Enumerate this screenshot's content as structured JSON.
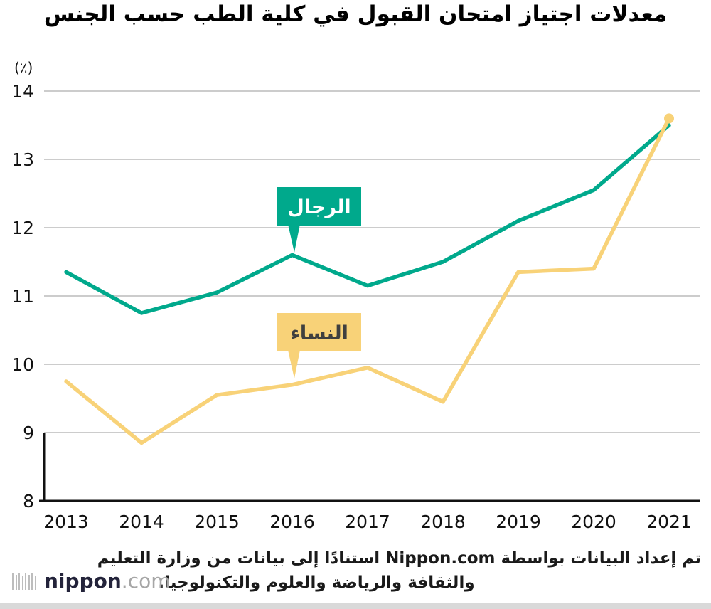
{
  "title": "معدلات اجتياز امتحان القبول في كلية الطب حسب الجنس",
  "chart_data": {
    "type": "line",
    "x": [
      "2013",
      "2014",
      "2015",
      "2016",
      "2017",
      "2018",
      "2019",
      "2020",
      "2021"
    ],
    "series": [
      {
        "name": "الرجال",
        "color": "#00a98c",
        "label_text_color": "#ffffff",
        "end_dot": false,
        "values": [
          11.35,
          10.75,
          11.05,
          11.6,
          11.15,
          11.5,
          12.1,
          12.55,
          13.5
        ]
      },
      {
        "name": "النساء",
        "color": "#f8d278",
        "label_text_color": "#3f3f3f",
        "end_dot": true,
        "values": [
          9.75,
          8.85,
          9.55,
          9.7,
          9.95,
          9.45,
          11.35,
          11.4,
          13.6
        ]
      }
    ],
    "ylabel": "(٪)",
    "xlabel": "",
    "ylim": [
      8,
      14
    ],
    "yticks": [
      8,
      9,
      10,
      11,
      12,
      13,
      14
    ],
    "grid": true,
    "legend_position": "inline-callouts"
  },
  "footer": {
    "source_line1": "تم إعداد البيانات بواسطة Nippon.com استنادًا إلى بيانات من وزارة التعليم",
    "source_line2": "والثقافة والرياضة والعلوم والتكنولوجيا.",
    "logo_main": "nippon",
    "logo_suffix": ".com"
  }
}
